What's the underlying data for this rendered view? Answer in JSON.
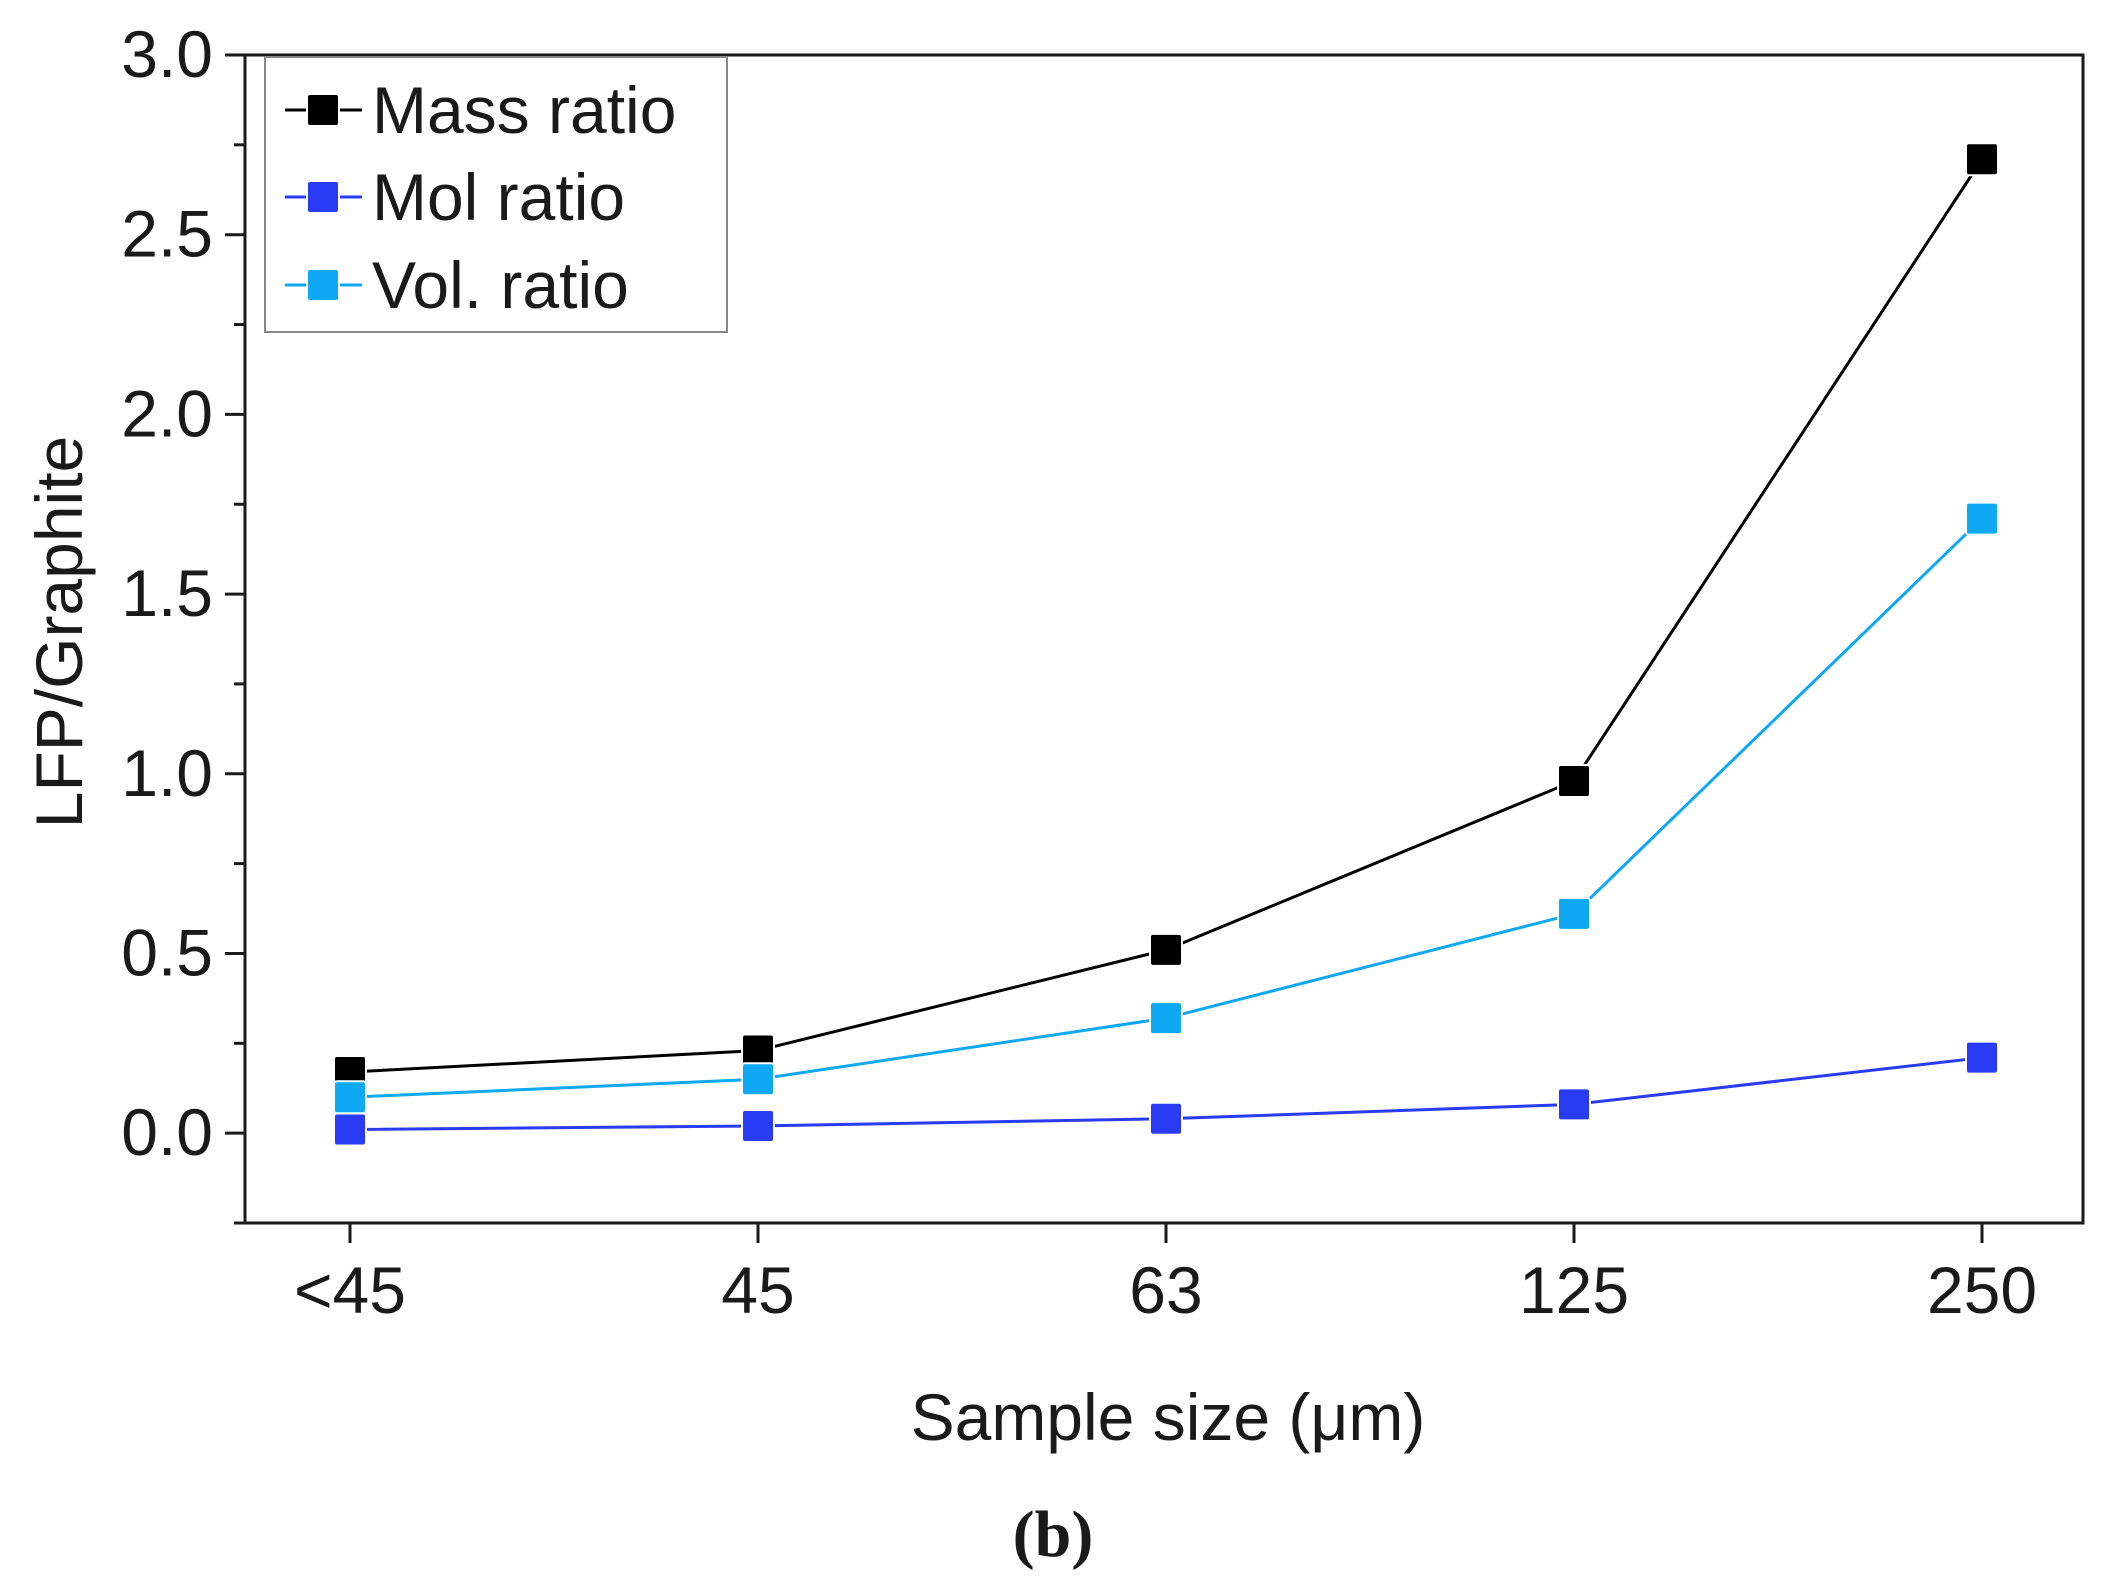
{
  "chart_data": {
    "type": "line",
    "title": "",
    "xlabel": "Sample size (μm)",
    "ylabel": "LFP/Graphite",
    "categories": [
      "<45",
      "45",
      "63",
      "125",
      "250"
    ],
    "ylim": [
      -0.25,
      3.0
    ],
    "yticks": [
      0.0,
      0.5,
      1.0,
      1.5,
      2.0,
      2.5,
      3.0
    ],
    "ytick_labels": [
      "0.0",
      "0.5",
      "1.0",
      "1.5",
      "2.0",
      "2.5",
      "3.0"
    ],
    "legend_position": "top-left",
    "grid": false,
    "marker": "square",
    "series": [
      {
        "name": "Mass ratio",
        "color": "#000000",
        "values": [
          0.17,
          0.23,
          0.51,
          0.98,
          2.71
        ]
      },
      {
        "name": "Mol ratio",
        "color": "#2a3bf5",
        "values": [
          0.01,
          0.02,
          0.04,
          0.08,
          0.21
        ]
      },
      {
        "name": "Vol. ratio",
        "color": "#0fa8f5",
        "values": [
          0.1,
          0.15,
          0.32,
          0.61,
          1.71
        ]
      }
    ]
  },
  "panel_label": "(b)"
}
